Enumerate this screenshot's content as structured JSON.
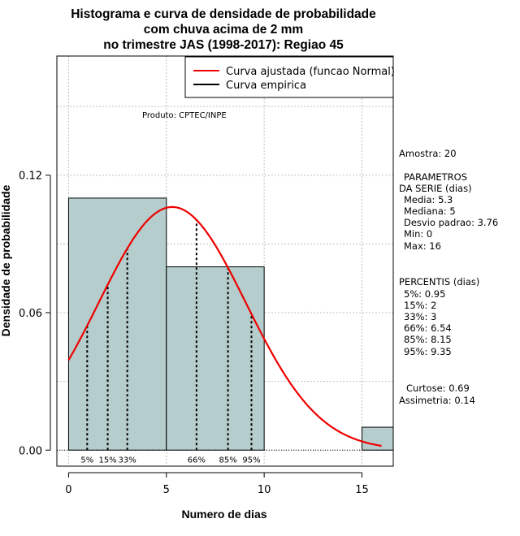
{
  "chart_data": {
    "type": "histogram",
    "title_lines": [
      "Histograma e curva de densidade de probabilidade",
      "com chuva acima de 2 mm",
      "no trimestre JAS (1998-2017): Regiao 45"
    ],
    "xlabel": "Numero de dias",
    "ylabel": "Densidade de probabilidade",
    "xlim": [
      -0.6,
      16.6
    ],
    "ylim": [
      -0.007,
      0.172
    ],
    "x_ticks": [
      0,
      5,
      10,
      15
    ],
    "y_ticks": [
      0.0,
      0.06,
      0.12
    ],
    "y_tick_labels": [
      "0.00",
      "0.06",
      "0.12"
    ],
    "grid": true,
    "bars": [
      {
        "x0": 0,
        "x1": 5,
        "density": 0.11
      },
      {
        "x0": 5,
        "x1": 10,
        "density": 0.08
      },
      {
        "x0": 15,
        "x1": 16.6,
        "density": 0.01
      }
    ],
    "fitted_curve": {
      "name": "Curva ajustada (funcao Normal)",
      "color": "#ee0000",
      "mean": 5.3,
      "sd": 3.76,
      "x_range": [
        0,
        16
      ]
    },
    "empirical_curve_name": "Curva empirica",
    "percentiles": [
      {
        "label": "5%",
        "x": 0.95
      },
      {
        "label": "15%",
        "x": 2
      },
      {
        "label": "33%",
        "x": 3
      },
      {
        "label": "66%",
        "x": 6.54
      },
      {
        "label": "85%",
        "x": 8.15
      },
      {
        "label": "95%",
        "x": 9.35
      }
    ],
    "legend_position": "top-right",
    "bar_fill": "#b5cdcc",
    "annotation": "Produto: CPTEC/INPE"
  },
  "side_panel": {
    "sample": "Amostra: 20",
    "params_title_1": "PARAMETROS",
    "params_title_2": "DA SERIE (dias)",
    "media": "Media: 5.3",
    "mediana": "Mediana: 5",
    "desvio": "Desvio padrao: 3.76",
    "min": "Min: 0",
    "max": "Max: 16",
    "percentis_title": "PERCENTIS (dias)",
    "p5": "5%: 0.95",
    "p15": "15%: 2",
    "p33": "33%: 3",
    "p66": "66%: 6.54",
    "p85": "85%: 8.15",
    "p95": "95%: 9.35",
    "curtose": "Curtose: 0.69",
    "assimetria": "Assimetria: 0.14"
  }
}
